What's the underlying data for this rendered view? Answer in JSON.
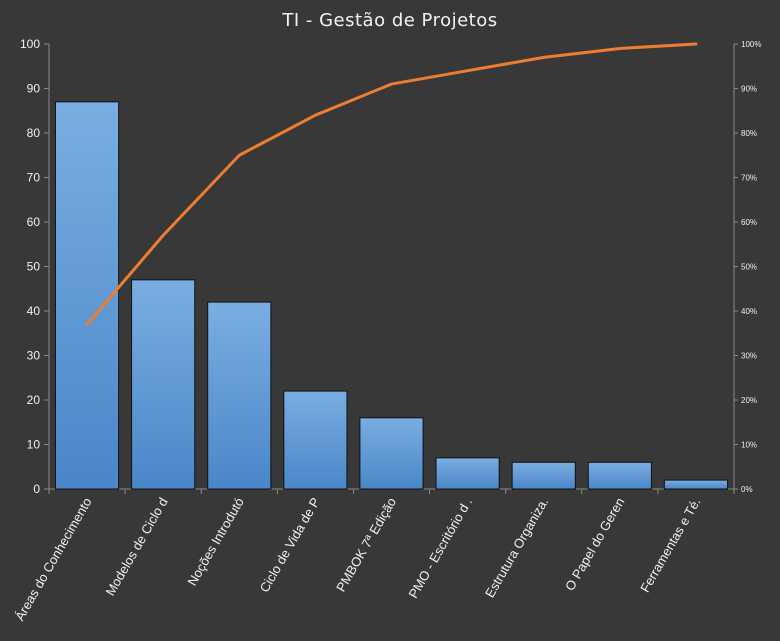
{
  "chart_data": {
    "type": "bar",
    "title": "TI - Gestão de Projetos",
    "categories": [
      "Áreas do Conhecimento",
      "Modelos de Ciclo d",
      "Noções Introdutó",
      "Ciclo de Vida de P",
      "PMBOK 7ª Edição",
      "PMO - Escritório d .",
      "Estrutura Organiza.",
      "O Papel do Geren",
      "Ferramentas e Té."
    ],
    "values": [
      87,
      47,
      42,
      22,
      16,
      7,
      6,
      6,
      2
    ],
    "cumulative_percent": [
      37,
      57,
      75,
      84,
      91,
      94,
      97,
      99,
      100
    ],
    "ylim": [
      0,
      100
    ],
    "yticks": [
      "0",
      "10",
      "20",
      "30",
      "40",
      "50",
      "60",
      "70",
      "80",
      "90",
      "100"
    ],
    "y2lim": [
      0,
      100
    ],
    "y2ticks": [
      "0%",
      "10%",
      "20%",
      "30%",
      "40%",
      "50%",
      "60%",
      "70%",
      "80%",
      "90%",
      "100%"
    ],
    "grid": false,
    "legend": "none",
    "colors": {
      "bar": "#5b9bd5",
      "bar_top": "#7eb0e0",
      "line": "#ed7d31",
      "background": "#383838",
      "text": "#f0f0f0"
    }
  }
}
